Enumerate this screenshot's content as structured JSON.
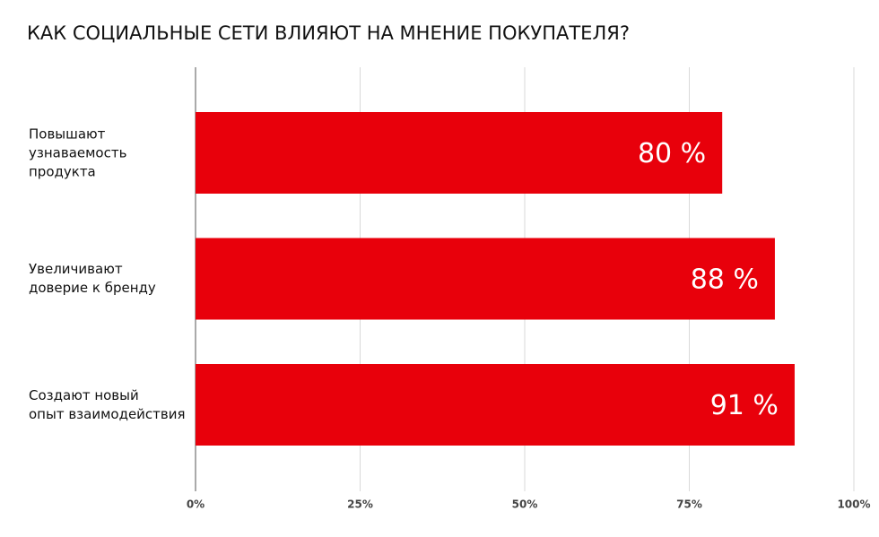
{
  "chart_data": {
    "type": "bar",
    "orientation": "horizontal",
    "title": "КАК СОЦИАЛЬНЫЕ СЕТИ ВЛИЯЮТ НА МНЕНИЕ ПОКУПАТЕЛЯ?",
    "categories": [
      "Повышают\nузнаваемость\nпродукта",
      "Увеличивают\nдоверие к бренду",
      "Создают новый\nопыт взаимодействия"
    ],
    "values": [
      80,
      88,
      91
    ],
    "value_labels": [
      "80 %",
      "88 %",
      "91 %"
    ],
    "color": "#e8000b",
    "xlim": [
      0,
      100
    ],
    "xticks": [
      {
        "value": 0,
        "label": "0%"
      },
      {
        "value": 25,
        "label": "25%"
      },
      {
        "value": 50,
        "label": "50%"
      },
      {
        "value": 75,
        "label": "75%"
      },
      {
        "value": 100,
        "label": "100%"
      }
    ],
    "grid": true
  }
}
